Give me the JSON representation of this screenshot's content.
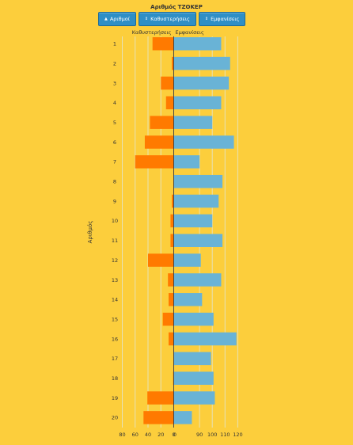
{
  "header": {
    "title": "Αριθμός ΤΖΟΚΕΡ",
    "buttons": [
      {
        "label": "Αριθμοί",
        "icon": "triangle-up-icon",
        "icon_glyph": "▲"
      },
      {
        "label": "Καθυστερήσεις",
        "icon": "updown-icon",
        "icon_glyph": "⇕"
      },
      {
        "label": "Εμφανίσεις",
        "icon": "updown-icon",
        "icon_glyph": "⇕"
      }
    ]
  },
  "colors": {
    "background": "#fcce3c",
    "left_bar": "#ff7a00",
    "right_bar": "#69b3d6",
    "axis": "#444444",
    "grid": "#e6e1b6",
    "button": "#2f8fc6"
  },
  "chart_data": {
    "type": "bar",
    "orientation": "horizontal-diverging",
    "title": "Αριθμός ΤΖΟΚΕΡ",
    "ylabel": "Αριθμός",
    "categories": [
      "1",
      "2",
      "3",
      "4",
      "5",
      "6",
      "7",
      "8",
      "9",
      "10",
      "11",
      "12",
      "13",
      "14",
      "15",
      "16",
      "17",
      "18",
      "19",
      "20"
    ],
    "series": [
      {
        "name": "Καθυστερήσεις",
        "side": "left",
        "values": [
          33,
          3,
          20,
          12,
          37,
          45,
          60,
          0,
          3,
          5,
          5,
          40,
          9,
          8,
          17,
          8,
          0,
          1,
          41,
          47
        ]
      },
      {
        "name": "Εμφανίσεις",
        "side": "right",
        "values": [
          107,
          114,
          113,
          107,
          100,
          117,
          90,
          108,
          105,
          100,
          108,
          91,
          107,
          92,
          101,
          119,
          99,
          101,
          102,
          84
        ]
      }
    ],
    "left_ticks": [
      80,
      60,
      40,
      20,
      0
    ],
    "right_ticks": [
      0,
      90,
      100,
      110,
      120
    ],
    "left_range": [
      0,
      80
    ],
    "right_range": [
      0,
      120
    ],
    "right_axis_break": 80,
    "grid": true
  }
}
